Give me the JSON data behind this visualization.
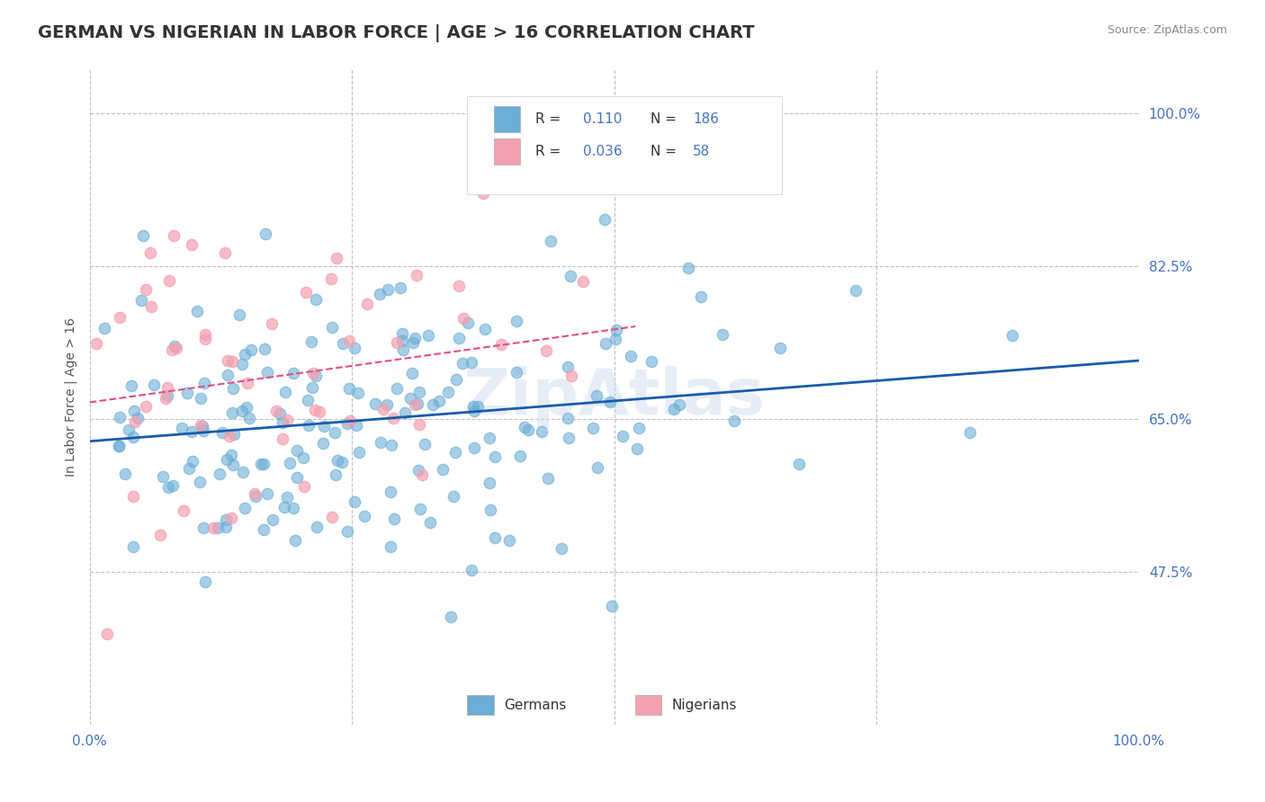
{
  "title": "GERMAN VS NIGERIAN IN LABOR FORCE | AGE > 16 CORRELATION CHART",
  "source_text": "Source: ZipAtlas.com",
  "xlabel": "",
  "ylabel": "In Labor Force | Age > 16",
  "xlim": [
    0.0,
    1.0
  ],
  "ylim": [
    0.3,
    1.05
  ],
  "yticks": [
    0.475,
    0.65,
    0.825,
    1.0
  ],
  "ytick_labels": [
    "47.5%",
    "65.0%",
    "82.5%",
    "100.0%"
  ],
  "xticks": [
    0.0,
    0.25,
    0.5,
    0.75,
    1.0
  ],
  "xtick_labels": [
    "0.0%",
    "",
    "",
    "",
    "100.0%"
  ],
  "german_R": 0.11,
  "german_N": 186,
  "nigerian_R": 0.036,
  "nigerian_N": 58,
  "blue_color": "#6baed6",
  "pink_color": "#f4a0b0",
  "blue_line_color": "#1a5ca8",
  "pink_line_color": "#e05080",
  "grid_color": "#c0c0c0",
  "title_color": "#333333",
  "label_color": "#4472c4",
  "background_color": "#ffffff",
  "title_fontsize": 14,
  "axis_fontsize": 10,
  "tick_fontsize": 11,
  "legend_label_color": "#4472c4",
  "watermark_text": "ZipAtlas",
  "watermark_color": "#d0ddf0"
}
